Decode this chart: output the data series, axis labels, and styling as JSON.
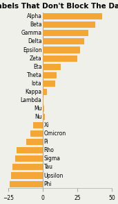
{
  "title": "Labels That Don't Block The Data",
  "categories": [
    "Alpha",
    "Beta",
    "Gamma",
    "Delta",
    "Epsilon",
    "Zeta",
    "Eta",
    "Theta",
    "Iota",
    "Kappa",
    "Lambda",
    "Mu",
    "Nu",
    "Xi",
    "Omicron",
    "Pi",
    "Rho",
    "Sigma",
    "Tau",
    "Upsilon",
    "Phi"
  ],
  "values": [
    43,
    38,
    33,
    30,
    27,
    25,
    13,
    10,
    9,
    3,
    0.5,
    1,
    1.5,
    -7,
    -9,
    -12,
    -19,
    -20,
    -22,
    -23,
    -24
  ],
  "bar_color": "#F4A636",
  "xlim": [
    -25,
    50
  ],
  "xticks": [
    -25,
    0,
    25,
    50
  ],
  "title_fontsize": 7.5,
  "tick_fontsize": 5.5,
  "label_fontsize": 5.5,
  "background_color": "#F0F0EB"
}
